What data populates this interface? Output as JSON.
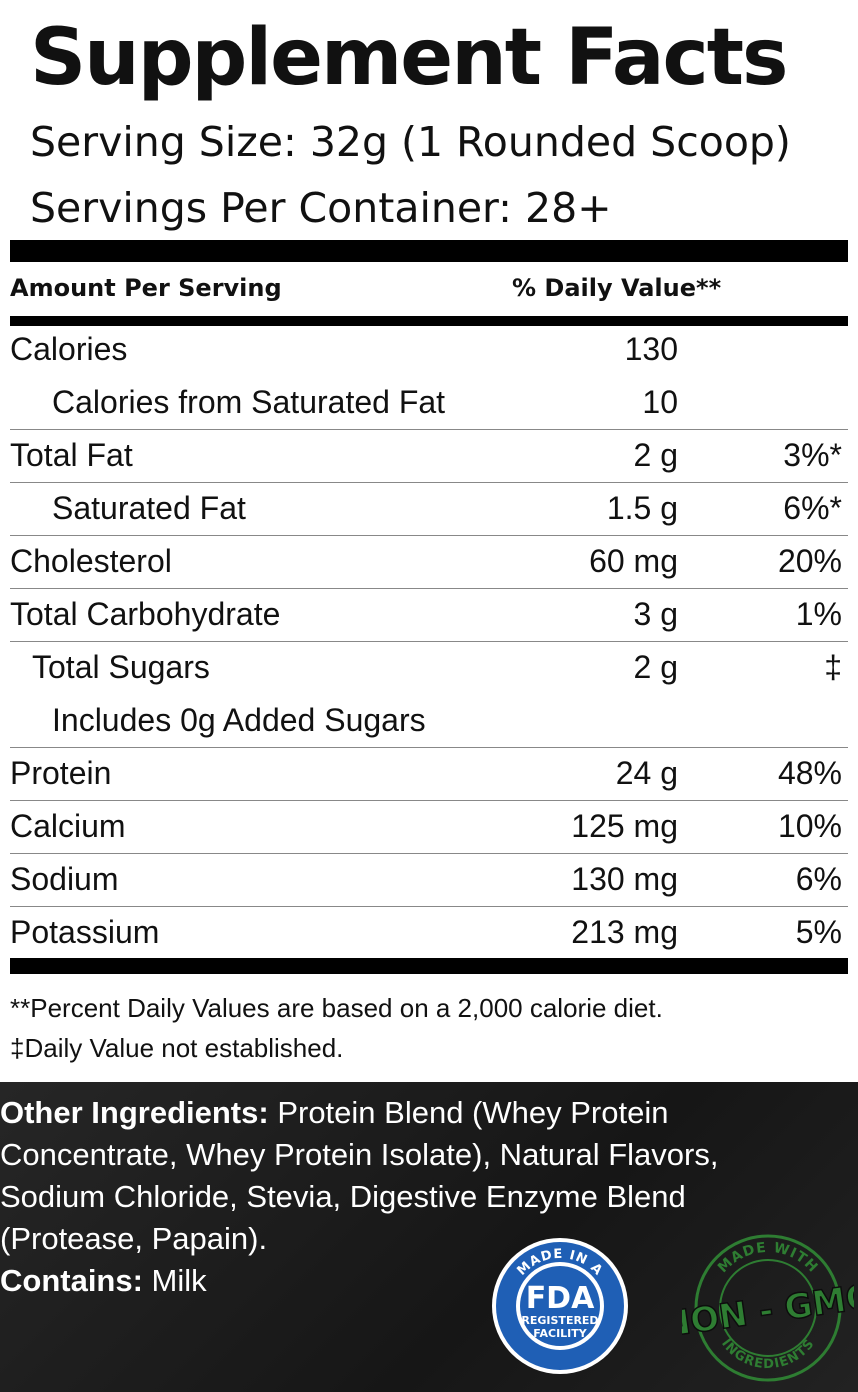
{
  "title": "Supplement Facts",
  "serving_size": "Serving Size: 32g (1 Rounded Scoop)",
  "servings_per_container": "Servings Per Container: 28+",
  "header": {
    "amount": "Amount Per Serving",
    "dv": "% Daily Value**"
  },
  "rows": [
    {
      "name": "Calories",
      "amount": "130",
      "dv": ""
    },
    {
      "name": "Calories from Saturated Fat",
      "amount": "10",
      "dv": ""
    },
    {
      "name": "Total Fat",
      "amount": "2 g",
      "dv": "3%*"
    },
    {
      "name": "Saturated Fat",
      "amount": "1.5 g",
      "dv": "6%*"
    },
    {
      "name": "Cholesterol",
      "amount": "60 mg",
      "dv": "20%"
    },
    {
      "name": "Total Carbohydrate",
      "amount": "3 g",
      "dv": "1%"
    },
    {
      "name": "Total Sugars",
      "amount": "2 g",
      "dv": "‡"
    },
    {
      "name": "Includes 0g Added Sugars",
      "amount": "",
      "dv": ""
    },
    {
      "name": "Protein",
      "amount": "24 g",
      "dv": "48%"
    },
    {
      "name": "Calcium",
      "amount": "125 mg",
      "dv": "10%"
    },
    {
      "name": "Sodium",
      "amount": "130 mg",
      "dv": "6%"
    },
    {
      "name": "Potassium",
      "amount": "213 mg",
      "dv": "5%"
    }
  ],
  "footnotes": [
    "**Percent Daily Values are based on a 2,000 calorie diet.",
    "‡Daily Value not established."
  ],
  "ingredients": {
    "label": "Other Ingredients:",
    "lines": [
      " Protein Blend (Whey Protein",
      "Concentrate, Whey Protein Isolate), Natural Flavors,",
      "Sodium Chloride, Stevia, Digestive Enzyme Blend",
      "(Protease, Papain)."
    ],
    "contains_label": "Contains:",
    "contains_value": " Milk"
  },
  "badges": {
    "fda": {
      "top": "MADE IN A",
      "main": "FDA",
      "line1": "REGISTERED",
      "line2": "FACILITY",
      "color": "#1f5fb5"
    },
    "gmo": {
      "top": "MADE WITH",
      "main": "NON - GMO",
      "bottom": "INGREDIENTS",
      "color": "#2e7d32"
    }
  }
}
